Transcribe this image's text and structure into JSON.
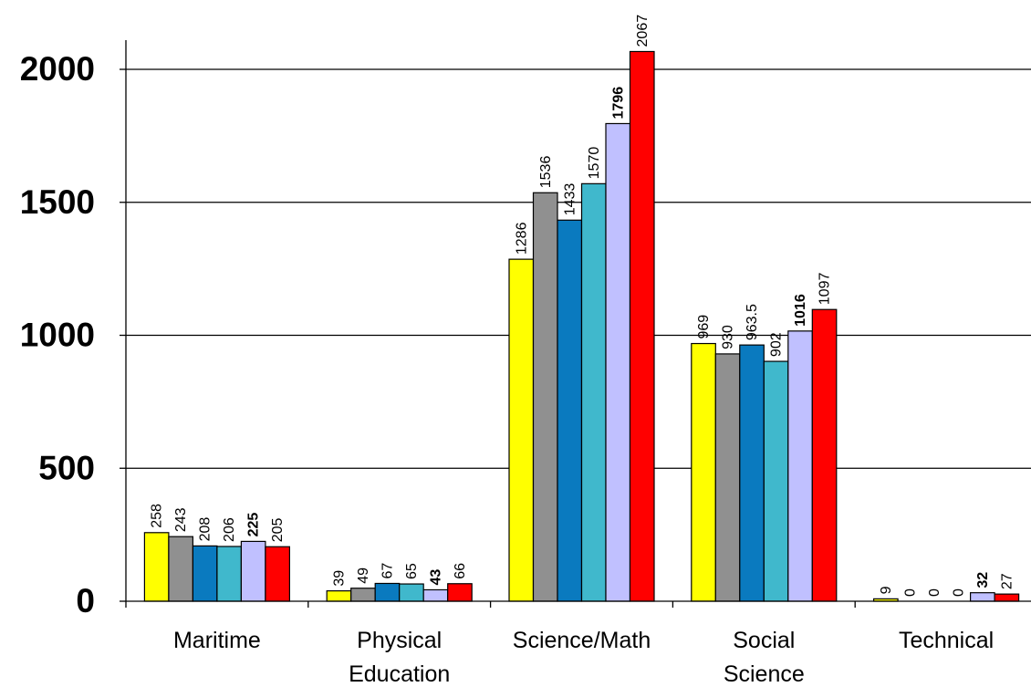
{
  "chart_data": {
    "type": "bar",
    "title": "",
    "xlabel": "",
    "ylabel": "",
    "ylim": [
      0,
      2000
    ],
    "yticks": [
      0,
      500,
      1000,
      1500,
      2000
    ],
    "grid": true,
    "legend": "none",
    "categories": [
      "Maritime",
      "Physical Education",
      "Science/Math",
      "Social Science",
      "Technical"
    ],
    "category_label_lines": [
      [
        "Maritime"
      ],
      [
        "Physical",
        "Education"
      ],
      [
        "Science/Math"
      ],
      [
        "Social",
        "Science"
      ],
      [
        "Technical"
      ]
    ],
    "series": [
      {
        "color": "#ffff00",
        "values": [
          258,
          39,
          1286,
          969,
          9
        ],
        "labels": [
          "258",
          "39",
          "1286",
          "969",
          "9"
        ]
      },
      {
        "color": "#909090",
        "values": [
          243,
          49,
          1536,
          930,
          0
        ],
        "labels": [
          "243",
          "49",
          "1536",
          "930",
          "0"
        ]
      },
      {
        "color": "#0a7abf",
        "values": [
          208,
          67,
          1433,
          963.5,
          0
        ],
        "labels": [
          "208",
          "67",
          "1433",
          "963.5",
          "0"
        ]
      },
      {
        "color": "#40b8cc",
        "values": [
          206,
          65,
          1570,
          902,
          0
        ],
        "labels": [
          "206",
          "65",
          "1570",
          "902",
          "0"
        ]
      },
      {
        "color": "#c0c0ff",
        "values": [
          225,
          43,
          1796,
          1016,
          32
        ],
        "labels": [
          "225",
          "43",
          "1796",
          "1016",
          "32"
        ],
        "bold_labels": true
      },
      {
        "color": "#ff0000",
        "values": [
          205,
          66,
          2067,
          1097,
          27
        ],
        "labels": [
          "205",
          "66",
          "2067",
          "1097",
          "27"
        ]
      }
    ]
  }
}
